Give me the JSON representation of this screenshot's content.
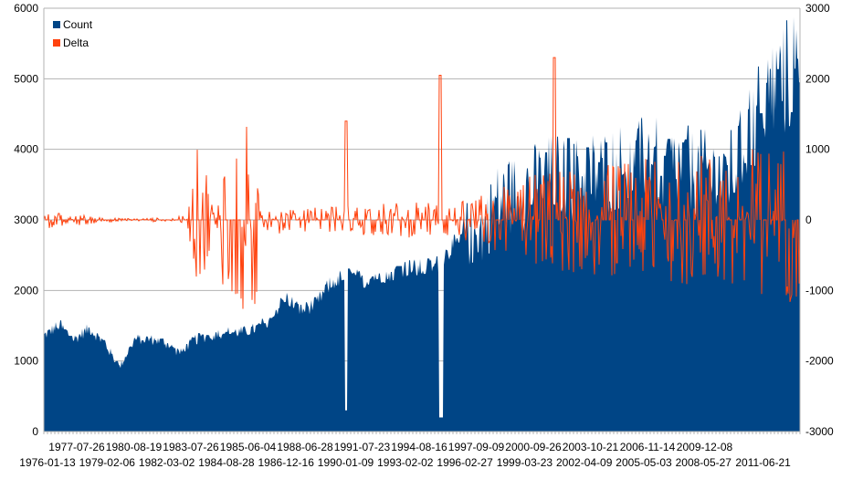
{
  "chart_data": {
    "type": "bar+line",
    "title": "",
    "legend_position": "top-left",
    "series": [
      {
        "name": "Count",
        "type": "area",
        "axis": "left",
        "color": "#004586"
      },
      {
        "name": "Delta",
        "type": "line",
        "axis": "right",
        "color": "#ff420e"
      }
    ],
    "y_left": {
      "min": 0,
      "max": 6000,
      "ticks": [
        0,
        1000,
        2000,
        3000,
        4000,
        5000,
        6000
      ]
    },
    "y_right": {
      "min": -3000,
      "max": 3000,
      "ticks": [
        -3000,
        -2000,
        -1000,
        0,
        1000,
        2000,
        3000
      ]
    },
    "x_tick_labels_row1": [
      "1977-07-26",
      "1980-08-19",
      "1983-07-26",
      "1985-06-04",
      "1988-06-28",
      "1991-07-23",
      "1994-08-16",
      "1997-09-09",
      "2000-09-26",
      "2003-10-21",
      "2006-11-14",
      "2009-12-08"
    ],
    "x_tick_labels_row2": [
      "1976-01-13",
      "1979-02-06",
      "1982-03-02",
      "1984-08-28",
      "1986-12-16",
      "1990-01-09",
      "1993-02-02",
      "1996-02-27",
      "1999-03-23",
      "2002-04-09",
      "2005-05-03",
      "2008-05-27",
      "2011-06-21"
    ],
    "count_anchors": [
      [
        0,
        1350
      ],
      [
        0.02,
        1500
      ],
      [
        0.04,
        1300
      ],
      [
        0.06,
        1450
      ],
      [
        0.08,
        1250
      ],
      [
        0.1,
        900
      ],
      [
        0.12,
        1300
      ],
      [
        0.14,
        1300
      ],
      [
        0.16,
        1250
      ],
      [
        0.18,
        1100
      ],
      [
        0.2,
        1300
      ],
      [
        0.22,
        1350
      ],
      [
        0.24,
        1400
      ],
      [
        0.26,
        1400
      ],
      [
        0.28,
        1450
      ],
      [
        0.3,
        1600
      ],
      [
        0.32,
        1900
      ],
      [
        0.34,
        1700
      ],
      [
        0.36,
        1800
      ],
      [
        0.38,
        2100
      ],
      [
        0.4,
        2200
      ],
      [
        0.42,
        2150
      ],
      [
        0.44,
        2200
      ],
      [
        0.46,
        2250
      ],
      [
        0.48,
        2300
      ],
      [
        0.5,
        2300
      ],
      [
        0.52,
        2350
      ],
      [
        0.54,
        2600
      ],
      [
        0.56,
        2750
      ],
      [
        0.58,
        2800
      ],
      [
        0.6,
        3200
      ],
      [
        0.62,
        3300
      ],
      [
        0.64,
        3400
      ],
      [
        0.66,
        3500
      ],
      [
        0.68,
        3600
      ],
      [
        0.7,
        3500
      ],
      [
        0.72,
        3600
      ],
      [
        0.74,
        3600
      ],
      [
        0.76,
        3700
      ],
      [
        0.78,
        3600
      ],
      [
        0.8,
        3900
      ],
      [
        0.82,
        3600
      ],
      [
        0.84,
        3700
      ],
      [
        0.86,
        3600
      ],
      [
        0.88,
        3600
      ],
      [
        0.9,
        3500
      ],
      [
        0.92,
        3800
      ],
      [
        0.94,
        4400
      ],
      [
        0.96,
        4700
      ],
      [
        0.98,
        4900
      ],
      [
        1.0,
        5300
      ]
    ],
    "delta_amplitude_anchors": [
      [
        0,
        120
      ],
      [
        0.04,
        90
      ],
      [
        0.08,
        30
      ],
      [
        0.12,
        20
      ],
      [
        0.16,
        30
      ],
      [
        0.19,
        60
      ],
      [
        0.2,
        900
      ],
      [
        0.21,
        1300
      ],
      [
        0.22,
        300
      ],
      [
        0.23,
        200
      ],
      [
        0.24,
        1300
      ],
      [
        0.28,
        1400
      ],
      [
        0.285,
        250
      ],
      [
        0.33,
        150
      ],
      [
        0.38,
        200
      ],
      [
        0.44,
        250
      ],
      [
        0.5,
        250
      ],
      [
        0.55,
        250
      ],
      [
        0.6,
        500
      ],
      [
        0.66,
        700
      ],
      [
        0.72,
        800
      ],
      [
        0.78,
        850
      ],
      [
        0.84,
        900
      ],
      [
        0.9,
        1000
      ],
      [
        0.96,
        1100
      ],
      [
        1.0,
        1200
      ]
    ],
    "notable_dips": [
      {
        "x_frac": 0.4,
        "count": 300
      },
      {
        "x_frac": 0.524,
        "count": 200
      }
    ],
    "notable_spikes_delta": [
      {
        "x_frac": 0.4,
        "delta": 1400
      },
      {
        "x_frac": 0.524,
        "delta": 2050
      },
      {
        "x_frac": 0.675,
        "delta": 2300
      }
    ]
  }
}
